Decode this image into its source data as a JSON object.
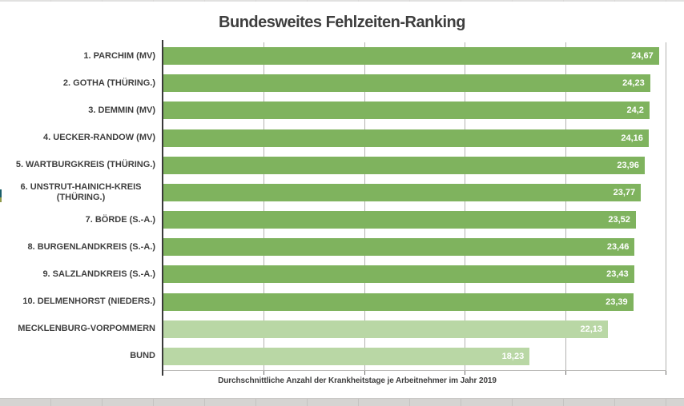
{
  "title": "Bundesweites Fehlzeiten-Ranking",
  "colors": {
    "bar_primary": "#7fb35e",
    "bar_secondary": "#b9d7a5",
    "gridline": "#b3b2b0",
    "axis_line": "#3a3a3a",
    "text": "#3e3e3e",
    "value_text": "#ffffff"
  },
  "chart_data": {
    "type": "bar",
    "orientation": "horizontal",
    "title": "Bundesweites Fehlzeiten-Ranking",
    "xlabel": "Durchschnittliche Anzahl der Krankheitstage je Arbeitnehmer im Jahr 2019",
    "ylabel": "",
    "xlim": [
      0,
      25
    ],
    "tick_step": 5,
    "grid": true,
    "legend": false,
    "categories": [
      "1. PARCHIM (MV)",
      "2. GOTHA (THÜRING.)",
      "3. DEMMIN (MV)",
      "4. UECKER-RANDOW (MV)",
      "5. WARTBURGKREIS (THÜRING.)",
      "6. UNSTRUT-HAINICH-KREIS (THÜRING.)",
      "7. BÖRDE (S.-A.)",
      "8. BURGENLANDKREIS (S.-A.)",
      "9. SALZLANDKREIS (S.-A.)",
      "10. DELMENHORST (NIEDERS.)",
      "MECKLENBURG-VORPOMMERN",
      "BUND"
    ],
    "values": [
      24.67,
      24.23,
      24.2,
      24.16,
      23.96,
      23.77,
      23.52,
      23.46,
      23.43,
      23.39,
      22.13,
      18.23
    ],
    "value_labels": [
      "24,67",
      "24,23",
      "24,2",
      "24,16",
      "23,96",
      "23,77",
      "23,52",
      "23,46",
      "23,43",
      "23,39",
      "22,13",
      "18,23"
    ],
    "bar_styles": [
      "primary",
      "primary",
      "primary",
      "primary",
      "primary",
      "primary",
      "primary",
      "primary",
      "primary",
      "primary",
      "secondary",
      "secondary"
    ]
  }
}
